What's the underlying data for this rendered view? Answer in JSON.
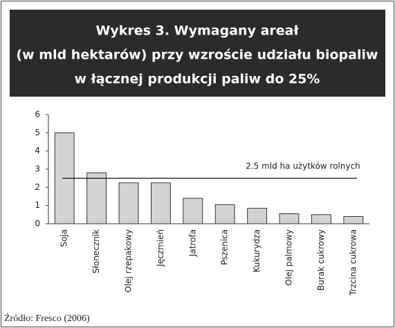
{
  "chart_data": {
    "type": "bar",
    "title_lines": [
      "Wykres 3. Wymagany areał",
      "(w mld hektarów) przy wzroście udziału biopaliw",
      "w łącznej produkcji paliw do 25%"
    ],
    "categories": [
      "Soja",
      "Słonecznik",
      "Olej rzepakowy",
      "Jęczmień",
      "Jatrofa",
      "Pszenica",
      "Kukurydza",
      "Olej palmowy",
      "Burak cukrowy",
      "Trzcina cukrowa"
    ],
    "values": [
      5,
      2.8,
      2.25,
      2.25,
      1.4,
      1.05,
      0.85,
      0.55,
      0.5,
      0.4
    ],
    "color": "#d3d3d3",
    "ylim": [
      0,
      6
    ],
    "yticks": [
      0,
      1,
      2,
      3,
      4,
      5,
      6
    ],
    "reference_line": {
      "value": 2.5,
      "label": "2.5 mld ha użytków rolnych"
    },
    "source": "Źródło: Fresco (2006)"
  }
}
